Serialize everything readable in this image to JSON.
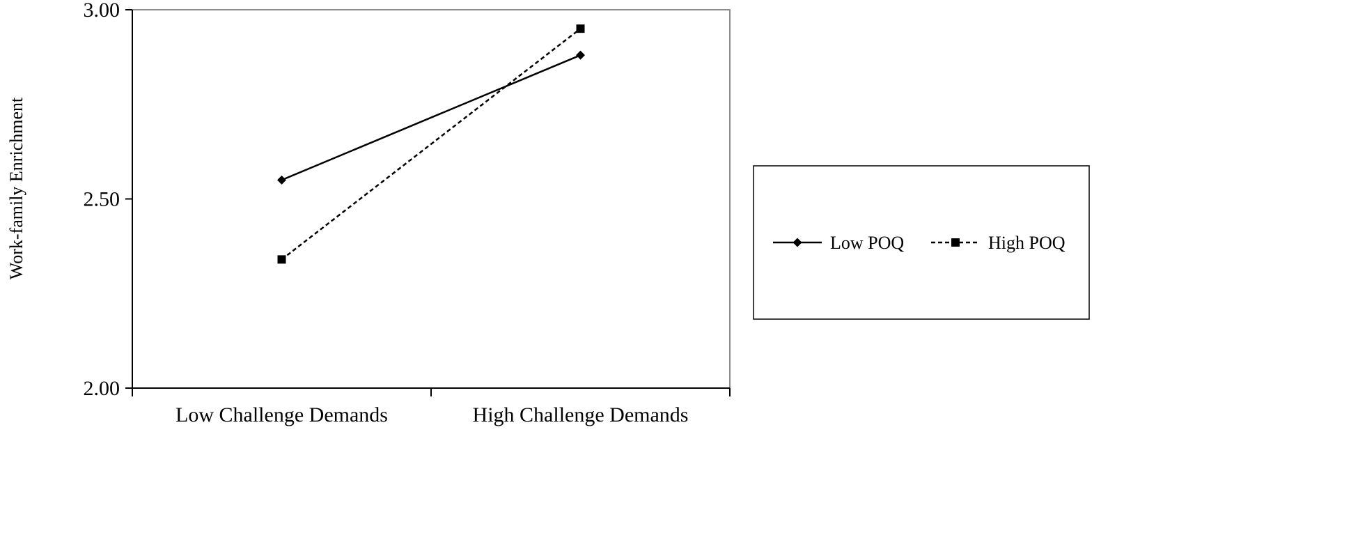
{
  "chart_data": {
    "type": "line",
    "title": "",
    "xlabel": "",
    "ylabel": "Work-family Enrichment",
    "categories": [
      "Low Challenge Demands",
      "High Challenge Demands"
    ],
    "ylim": [
      2.0,
      3.0
    ],
    "yticks": [
      "2.00",
      "2.50",
      "3.00"
    ],
    "grid": false,
    "legend_position": "right",
    "series": [
      {
        "name": "Low POQ",
        "values": [
          2.55,
          2.88
        ],
        "marker": "diamond",
        "line_style": "solid",
        "color": "#000000"
      },
      {
        "name": "High POQ",
        "values": [
          2.34,
          2.95
        ],
        "marker": "square",
        "line_style": "dashed",
        "color": "#000000"
      }
    ]
  },
  "colors": {
    "axis": "#000000",
    "plot_frame": "#8c8c8c",
    "series": "#000000"
  }
}
